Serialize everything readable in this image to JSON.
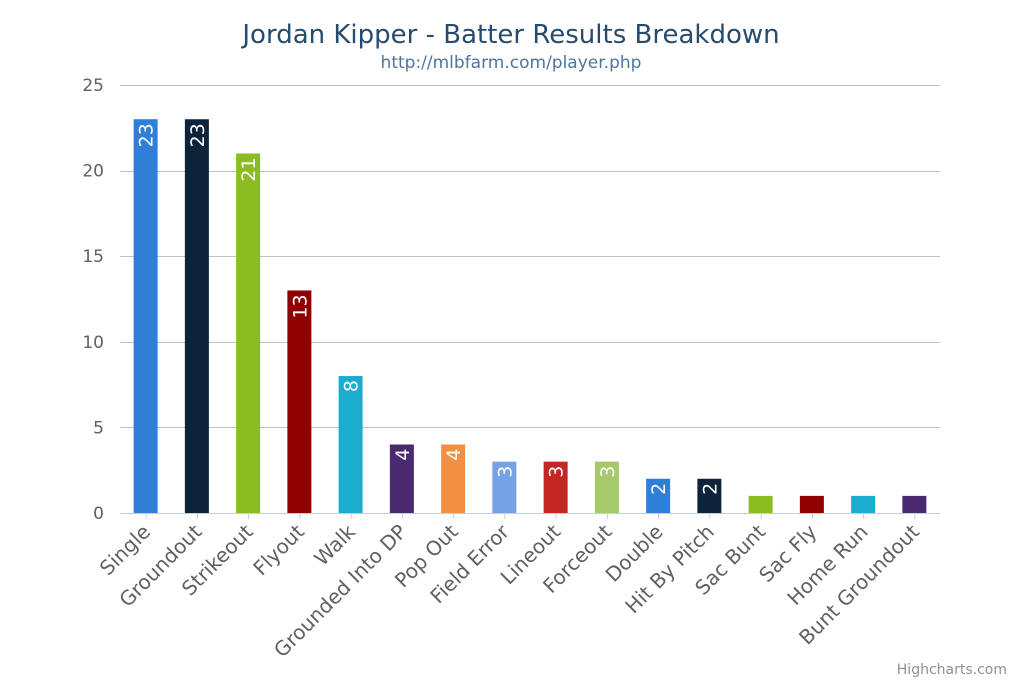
{
  "chart_data": {
    "type": "bar",
    "title": "Jordan Kipper - Batter Results Breakdown",
    "subtitle": "http://mlbfarm.com/player.php",
    "xlabel": "",
    "ylabel": "",
    "ylim": [
      0,
      25
    ],
    "yticks": [
      0,
      5,
      10,
      15,
      20,
      25
    ],
    "grid": true,
    "legend": "none",
    "categories": [
      "Single",
      "Groundout",
      "Strikeout",
      "Flyout",
      "Walk",
      "Grounded Into DP",
      "Pop Out",
      "Field Error",
      "Lineout",
      "Forceout",
      "Double",
      "Hit By Pitch",
      "Sac Bunt",
      "Sac Fly",
      "Home Run",
      "Bunt Groundout"
    ],
    "values": [
      23,
      23,
      21,
      13,
      8,
      4,
      4,
      3,
      3,
      3,
      2,
      2,
      1,
      1,
      1,
      1
    ],
    "colors": [
      "#2f7ed8",
      "#0d233a",
      "#8bbc21",
      "#910000",
      "#1aadce",
      "#492970",
      "#f28f43",
      "#77a1e5",
      "#c42525",
      "#a6c96a",
      "#2f7ed8",
      "#0d233a",
      "#8bbc21",
      "#910000",
      "#1aadce",
      "#492970"
    ],
    "data_labels_min_value": 2
  },
  "credits": "Highcharts.com",
  "gridline_color": "#c0c0c0",
  "axis_line_color": "#c0d0e0"
}
